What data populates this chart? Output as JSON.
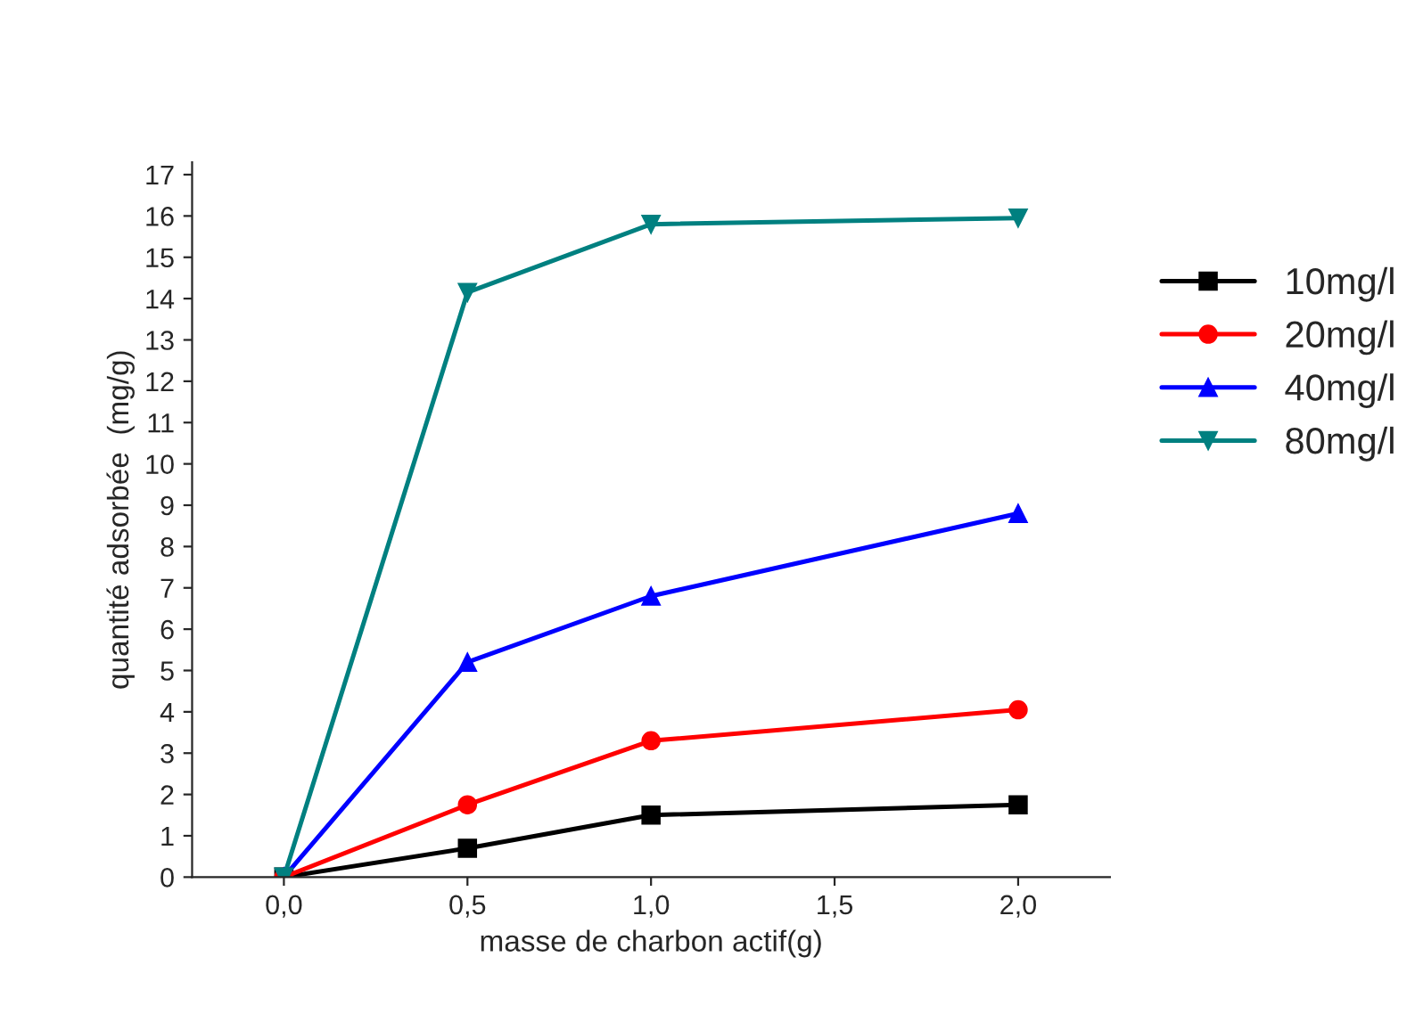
{
  "chart_data": {
    "type": "line",
    "xlabel": "masse de charbon actif(g)",
    "ylabel": "quantité adsorbée  (mg/g)",
    "x": [
      0,
      0.5,
      1,
      2
    ],
    "series": [
      {
        "name": "10mg/l",
        "color": "#000000",
        "marker": "square",
        "values": [
          0,
          0.7,
          1.5,
          1.75
        ]
      },
      {
        "name": "20mg/l",
        "color": "#ff0000",
        "marker": "circle",
        "values": [
          0,
          1.75,
          3.3,
          4.05
        ]
      },
      {
        "name": "40mg/l",
        "color": "#0000ff",
        "marker": "triangle",
        "values": [
          0,
          5.2,
          6.8,
          8.8
        ]
      },
      {
        "name": "80mg/l",
        "color": "#008080",
        "marker": "triangle_down",
        "values": [
          0,
          14.15,
          15.8,
          15.95
        ]
      }
    ],
    "xlim": [
      -0.25,
      2.25
    ],
    "xticks": [
      {
        "value": 0,
        "label": "0,0"
      },
      {
        "value": 0.5,
        "label": "0,5"
      },
      {
        "value": 1,
        "label": "1,0"
      },
      {
        "value": 1.5,
        "label": "1,5"
      },
      {
        "value": 2,
        "label": "2,0"
      }
    ],
    "ylim": [
      0,
      17.3
    ],
    "yticks": [
      0,
      1,
      2,
      3,
      4,
      5,
      6,
      7,
      8,
      9,
      10,
      11,
      12,
      13,
      14,
      15,
      16,
      17
    ],
    "grid": false,
    "legend": "top right",
    "line_style": "solid"
  }
}
